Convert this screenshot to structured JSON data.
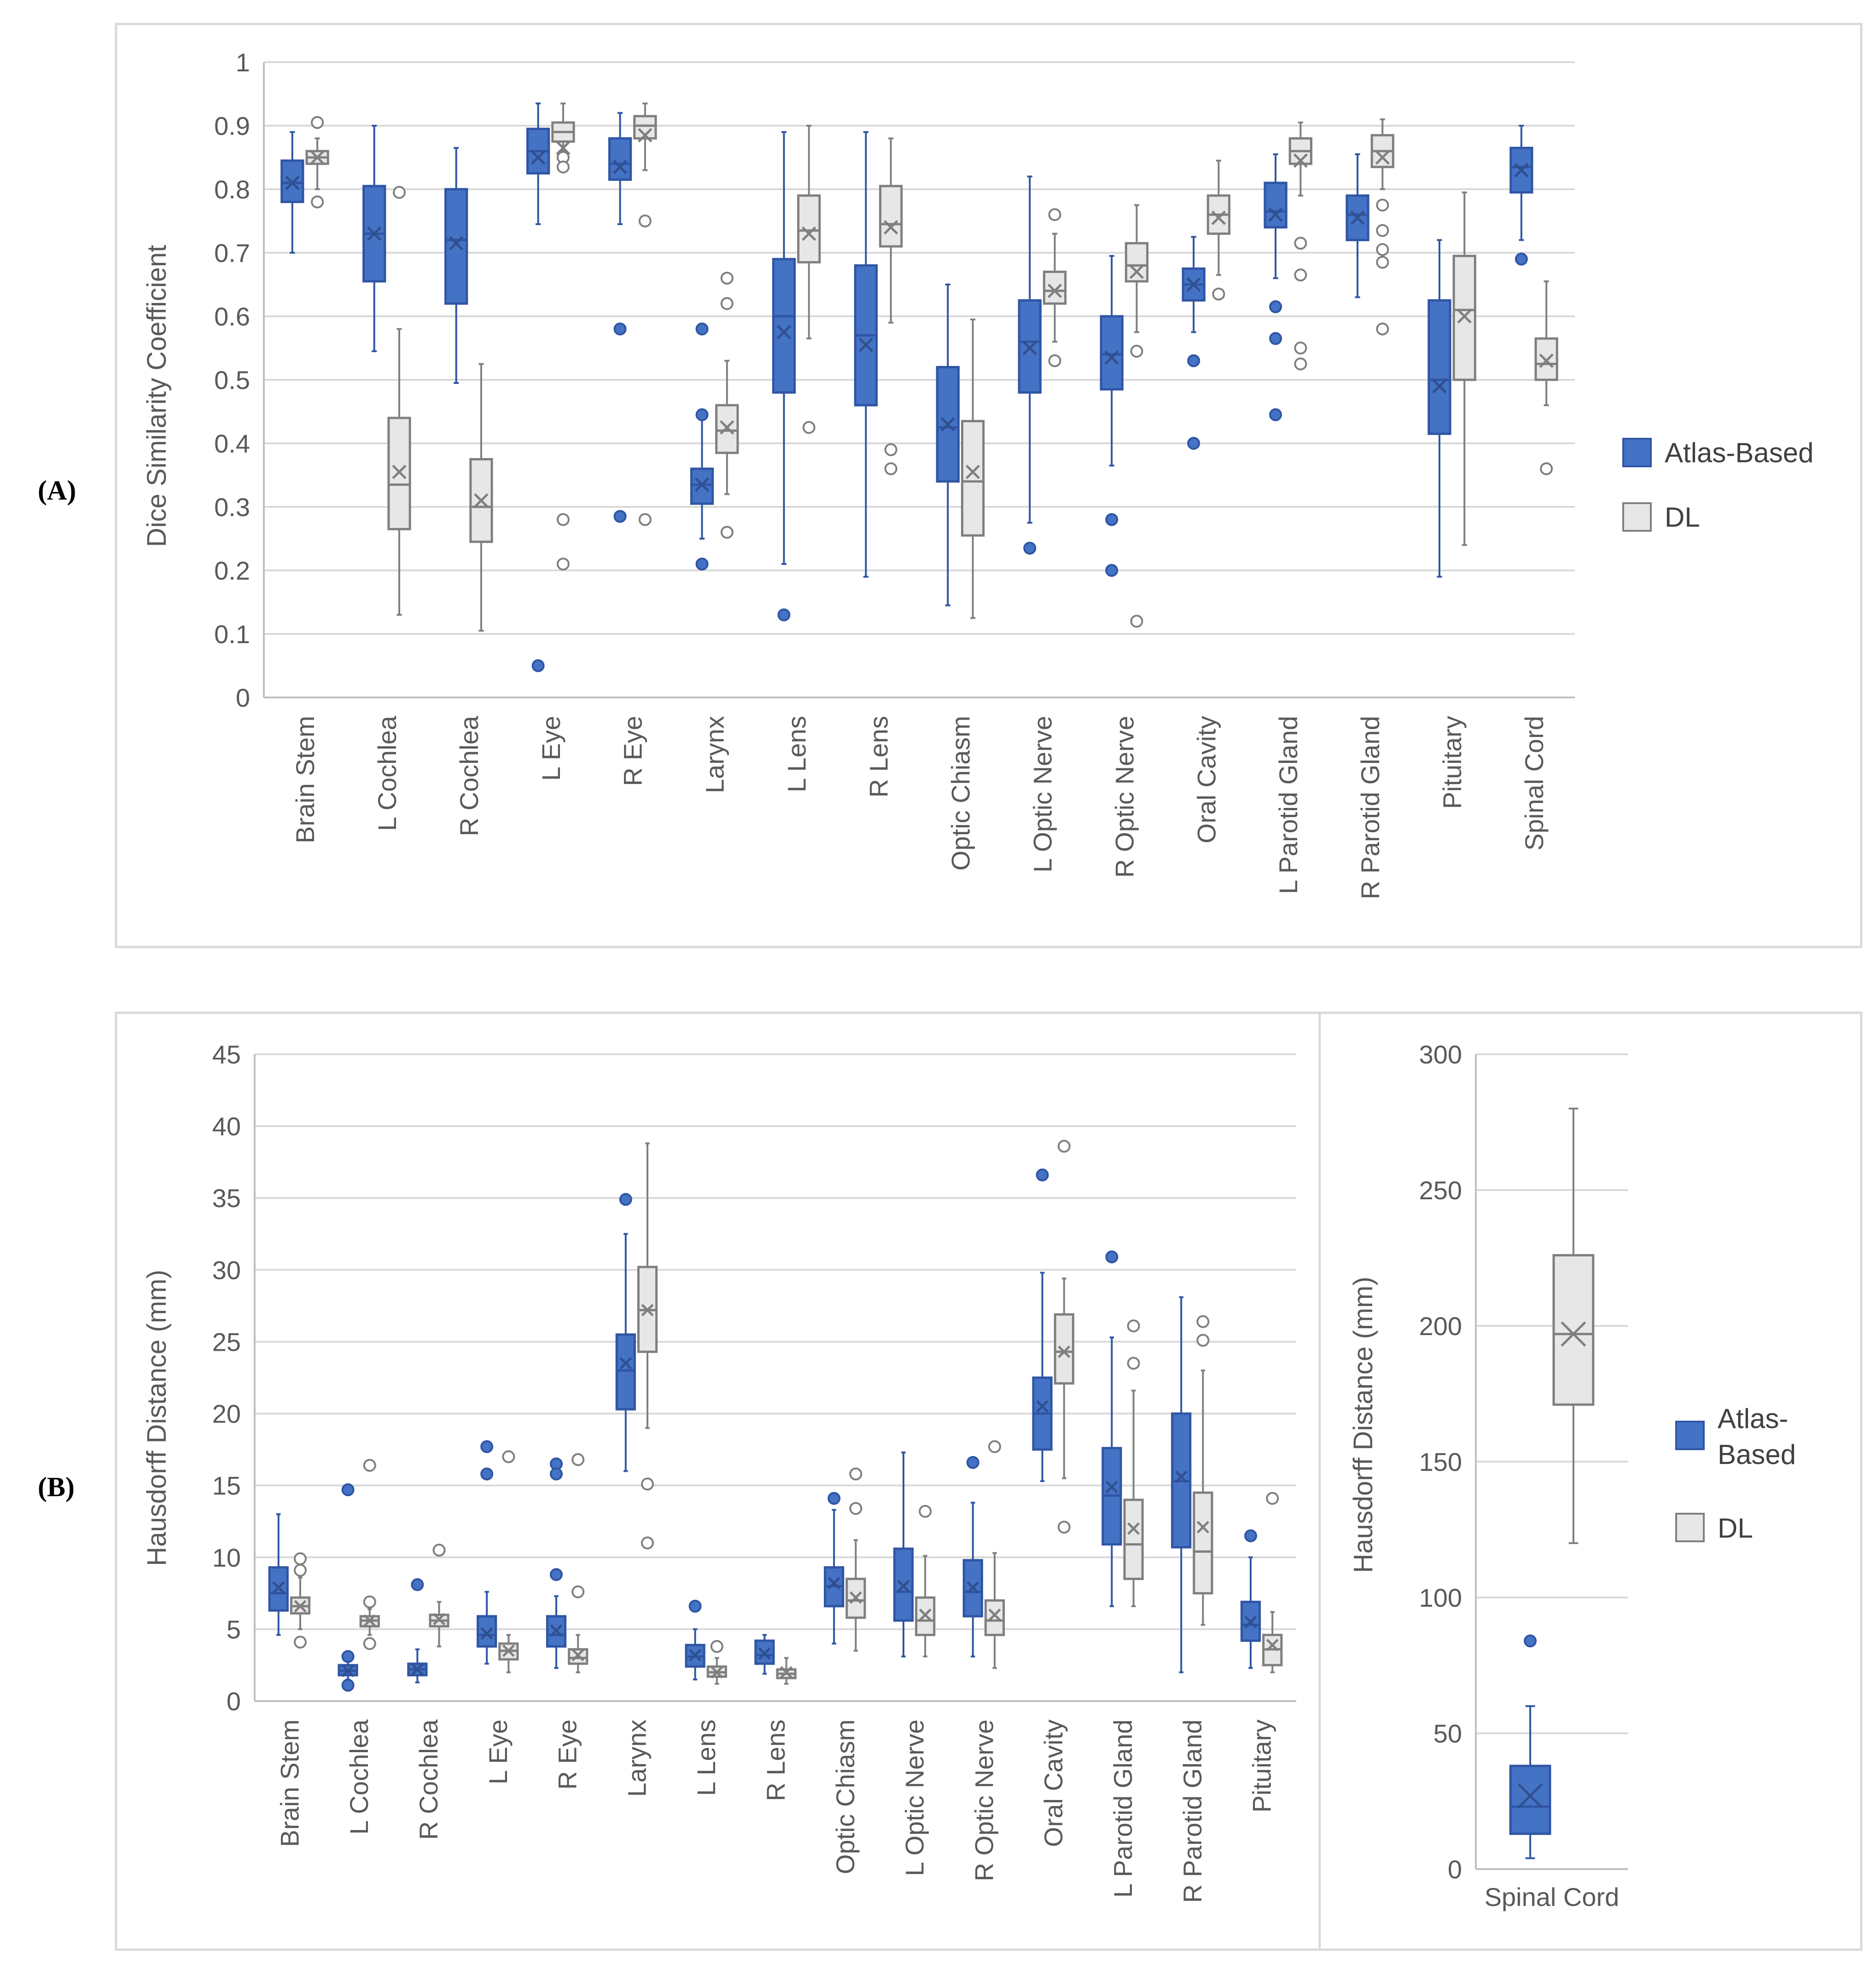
{
  "colors": {
    "atlas": "#4472C4",
    "atlas_edge": "#2F55A4",
    "dl": "#E7E7E7",
    "dl_edge": "#7F7F7F",
    "grid": "#D9D9D9",
    "axis": "#BFBFBF",
    "text": "#595959"
  },
  "chart_data": [
    {
      "id": "A",
      "panel_label_open": "(",
      "panel_label": "A",
      "panel_label_close": ")",
      "type": "box",
      "ylabel": "Dice Similarity Coefficient",
      "ylim": [
        0,
        1
      ],
      "yticks": [
        "0",
        "0.1",
        "0.2",
        "0.3",
        "0.4",
        "0.5",
        "0.6",
        "0.7",
        "0.8",
        "0.9",
        "1"
      ],
      "legend": [
        "Atlas-Based",
        "DL"
      ],
      "categories": [
        "Brain Stem",
        "L Cochlea",
        "R Cochlea",
        "L Eye",
        "R Eye",
        "Larynx",
        "L Lens",
        "R Lens",
        "Optic Chiasm",
        "L Optic Nerve",
        "R Optic Nerve",
        "Oral Cavity",
        "L Parotid Gland",
        "R Parotid Gland",
        "Pituitary",
        "Spinal Cord"
      ],
      "series": [
        {
          "name": "Atlas-Based",
          "boxes": [
            {
              "min": 0.7,
              "q1": 0.78,
              "med": 0.81,
              "q3": 0.845,
              "max": 0.89,
              "mean": 0.81,
              "out": []
            },
            {
              "min": 0.545,
              "q1": 0.655,
              "med": 0.73,
              "q3": 0.805,
              "max": 0.9,
              "mean": 0.73,
              "out": []
            },
            {
              "min": 0.495,
              "q1": 0.62,
              "med": 0.72,
              "q3": 0.8,
              "max": 0.865,
              "mean": 0.715,
              "out": []
            },
            {
              "min": 0.745,
              "q1": 0.825,
              "med": 0.86,
              "q3": 0.895,
              "max": 0.935,
              "mean": 0.85,
              "out": [
                0.05
              ]
            },
            {
              "min": 0.745,
              "q1": 0.815,
              "med": 0.84,
              "q3": 0.88,
              "max": 0.92,
              "mean": 0.835,
              "out": [
                0.58,
                0.285
              ]
            },
            {
              "min": 0.25,
              "q1": 0.305,
              "med": 0.335,
              "q3": 0.36,
              "max": 0.44,
              "mean": 0.335,
              "out": [
                0.58,
                0.445,
                0.21
              ]
            },
            {
              "min": 0.21,
              "q1": 0.48,
              "med": 0.6,
              "q3": 0.69,
              "max": 0.89,
              "mean": 0.575,
              "out": [
                0.13
              ]
            },
            {
              "min": 0.19,
              "q1": 0.46,
              "med": 0.57,
              "q3": 0.68,
              "max": 0.89,
              "mean": 0.555,
              "out": []
            },
            {
              "min": 0.145,
              "q1": 0.34,
              "med": 0.425,
              "q3": 0.52,
              "max": 0.65,
              "mean": 0.43,
              "out": []
            },
            {
              "min": 0.275,
              "q1": 0.48,
              "med": 0.56,
              "q3": 0.625,
              "max": 0.82,
              "mean": 0.55,
              "out": [
                0.235
              ]
            },
            {
              "min": 0.365,
              "q1": 0.485,
              "med": 0.54,
              "q3": 0.6,
              "max": 0.695,
              "mean": 0.535,
              "out": [
                0.28,
                0.2
              ]
            },
            {
              "min": 0.575,
              "q1": 0.625,
              "med": 0.65,
              "q3": 0.675,
              "max": 0.725,
              "mean": 0.65,
              "out": [
                0.53,
                0.4
              ]
            },
            {
              "min": 0.66,
              "q1": 0.74,
              "med": 0.765,
              "q3": 0.81,
              "max": 0.855,
              "mean": 0.76,
              "out": [
                0.615,
                0.565,
                0.445
              ]
            },
            {
              "min": 0.63,
              "q1": 0.72,
              "med": 0.76,
              "q3": 0.79,
              "max": 0.855,
              "mean": 0.755,
              "out": []
            },
            {
              "min": 0.19,
              "q1": 0.415,
              "med": 0.5,
              "q3": 0.625,
              "max": 0.72,
              "mean": 0.49,
              "out": []
            },
            {
              "min": 0.72,
              "q1": 0.795,
              "med": 0.835,
              "q3": 0.865,
              "max": 0.9,
              "mean": 0.83,
              "out": [
                0.69
              ]
            }
          ]
        },
        {
          "name": "DL",
          "boxes": [
            {
              "min": 0.8,
              "q1": 0.84,
              "med": 0.85,
              "q3": 0.86,
              "max": 0.88,
              "mean": 0.85,
              "out": [
                0.905,
                0.78
              ]
            },
            {
              "min": 0.13,
              "q1": 0.265,
              "med": 0.335,
              "q3": 0.44,
              "max": 0.58,
              "mean": 0.355,
              "out": [
                0.795
              ]
            },
            {
              "min": 0.105,
              "q1": 0.245,
              "med": 0.3,
              "q3": 0.375,
              "max": 0.525,
              "mean": 0.31,
              "out": []
            },
            {
              "min": 0.86,
              "q1": 0.875,
              "med": 0.89,
              "q3": 0.905,
              "max": 0.935,
              "mean": 0.865,
              "out": [
                0.85,
                0.835,
                0.28,
                0.21
              ]
            },
            {
              "min": 0.83,
              "q1": 0.88,
              "med": 0.9,
              "q3": 0.915,
              "max": 0.935,
              "mean": 0.885,
              "out": [
                0.75,
                0.28
              ]
            },
            {
              "min": 0.32,
              "q1": 0.385,
              "med": 0.42,
              "q3": 0.46,
              "max": 0.53,
              "mean": 0.425,
              "out": [
                0.66,
                0.62,
                0.26
              ]
            },
            {
              "min": 0.565,
              "q1": 0.685,
              "med": 0.735,
              "q3": 0.79,
              "max": 0.9,
              "mean": 0.73,
              "out": [
                0.425
              ]
            },
            {
              "min": 0.59,
              "q1": 0.71,
              "med": 0.745,
              "q3": 0.805,
              "max": 0.88,
              "mean": 0.74,
              "out": [
                0.39,
                0.36
              ]
            },
            {
              "min": 0.125,
              "q1": 0.255,
              "med": 0.34,
              "q3": 0.435,
              "max": 0.595,
              "mean": 0.355,
              "out": []
            },
            {
              "min": 0.56,
              "q1": 0.62,
              "med": 0.64,
              "q3": 0.67,
              "max": 0.73,
              "mean": 0.64,
              "out": [
                0.76,
                0.53
              ]
            },
            {
              "min": 0.575,
              "q1": 0.655,
              "med": 0.68,
              "q3": 0.715,
              "max": 0.775,
              "mean": 0.67,
              "out": [
                0.545,
                0.12
              ]
            },
            {
              "min": 0.665,
              "q1": 0.73,
              "med": 0.76,
              "q3": 0.79,
              "max": 0.845,
              "mean": 0.755,
              "out": [
                0.635
              ]
            },
            {
              "min": 0.79,
              "q1": 0.84,
              "med": 0.86,
              "q3": 0.88,
              "max": 0.905,
              "mean": 0.845,
              "out": [
                0.715,
                0.665,
                0.55,
                0.525
              ]
            },
            {
              "min": 0.8,
              "q1": 0.835,
              "med": 0.86,
              "q3": 0.885,
              "max": 0.91,
              "mean": 0.85,
              "out": [
                0.775,
                0.735,
                0.705,
                0.685,
                0.58
              ]
            },
            {
              "min": 0.24,
              "q1": 0.5,
              "med": 0.61,
              "q3": 0.695,
              "max": 0.795,
              "mean": 0.6,
              "out": []
            },
            {
              "min": 0.46,
              "q1": 0.5,
              "med": 0.525,
              "q3": 0.565,
              "max": 0.655,
              "mean": 0.53,
              "out": [
                0.36
              ]
            }
          ]
        }
      ]
    },
    {
      "id": "B",
      "panel_label_open": "(",
      "panel_label": "B",
      "panel_label_close": ")",
      "type": "box",
      "ylabel": "Hausdorff Distance (mm)",
      "ylim": [
        0,
        45
      ],
      "yticks": [
        "0",
        "5",
        "10",
        "15",
        "20",
        "25",
        "30",
        "35",
        "40",
        "45"
      ],
      "categories": [
        "Brain Stem",
        "L Cochlea",
        "R Cochlea",
        "L Eye",
        "R Eye",
        "Larynx",
        "L Lens",
        "R Lens",
        "Optic Chiasm",
        "L Optic Nerve",
        "R Optic Nerve",
        "Oral Cavity",
        "L Parotid Gland",
        "R Parotid Gland",
        "Pituitary"
      ],
      "series": [
        {
          "name": "Atlas-Based",
          "boxes": [
            {
              "min": 4.6,
              "q1": 6.3,
              "med": 7.5,
              "q3": 9.3,
              "max": 13.0,
              "mean": 7.9,
              "out": []
            },
            {
              "min": 1.5,
              "q1": 1.8,
              "med": 2.1,
              "q3": 2.5,
              "max": 3.0,
              "mean": 2.1,
              "out": [
                14.7,
                3.1,
                1.1
              ]
            },
            {
              "min": 1.3,
              "q1": 1.8,
              "med": 2.2,
              "q3": 2.6,
              "max": 3.6,
              "mean": 2.2,
              "out": [
                8.1
              ]
            },
            {
              "min": 2.6,
              "q1": 3.8,
              "med": 4.6,
              "q3": 5.9,
              "max": 7.6,
              "mean": 4.7,
              "out": [
                17.7,
                15.8
              ]
            },
            {
              "min": 2.3,
              "q1": 3.8,
              "med": 4.6,
              "q3": 5.9,
              "max": 7.3,
              "mean": 4.9,
              "out": [
                16.5,
                15.8,
                8.8
              ]
            },
            {
              "min": 16.0,
              "q1": 20.3,
              "med": 23.0,
              "q3": 25.5,
              "max": 32.5,
              "mean": 23.5,
              "out": [
                34.9
              ]
            },
            {
              "min": 1.5,
              "q1": 2.4,
              "med": 3.1,
              "q3": 3.9,
              "max": 5.0,
              "mean": 3.2,
              "out": [
                6.6
              ]
            },
            {
              "min": 1.9,
              "q1": 2.6,
              "med": 3.2,
              "q3": 4.2,
              "max": 4.6,
              "mean": 3.3,
              "out": []
            },
            {
              "min": 4.0,
              "q1": 6.6,
              "med": 8.0,
              "q3": 9.3,
              "max": 13.3,
              "mean": 8.2,
              "out": [
                14.1
              ]
            },
            {
              "min": 3.1,
              "q1": 5.6,
              "med": 7.6,
              "q3": 10.6,
              "max": 17.3,
              "mean": 8.0,
              "out": []
            },
            {
              "min": 3.1,
              "q1": 5.9,
              "med": 7.6,
              "q3": 9.8,
              "max": 13.8,
              "mean": 7.9,
              "out": [
                16.6
              ]
            },
            {
              "min": 15.3,
              "q1": 17.5,
              "med": 20.0,
              "q3": 22.5,
              "max": 29.8,
              "mean": 20.5,
              "out": [
                36.6
              ]
            },
            {
              "min": 6.6,
              "q1": 10.9,
              "med": 14.3,
              "q3": 17.6,
              "max": 25.3,
              "mean": 14.9,
              "out": [
                30.9
              ]
            },
            {
              "min": 2.0,
              "q1": 10.7,
              "med": 15.3,
              "q3": 20.0,
              "max": 28.1,
              "mean": 15.6,
              "out": []
            },
            {
              "min": 2.3,
              "q1": 4.2,
              "med": 5.3,
              "q3": 6.9,
              "max": 10.0,
              "mean": 5.5,
              "out": [
                11.5
              ]
            }
          ]
        },
        {
          "name": "DL",
          "boxes": [
            {
              "min": 5.0,
              "q1": 6.1,
              "med": 6.6,
              "q3": 7.2,
              "max": 8.6,
              "mean": 6.6,
              "out": [
                9.9,
                9.1,
                4.1
              ]
            },
            {
              "min": 4.6,
              "q1": 5.2,
              "med": 5.6,
              "q3": 5.9,
              "max": 6.4,
              "mean": 5.6,
              "out": [
                16.4,
                6.9,
                4.0
              ]
            },
            {
              "min": 3.8,
              "q1": 5.2,
              "med": 5.6,
              "q3": 6.0,
              "max": 6.9,
              "mean": 5.7,
              "out": [
                10.5
              ]
            },
            {
              "min": 2.0,
              "q1": 2.9,
              "med": 3.5,
              "q3": 4.0,
              "max": 4.6,
              "mean": 3.5,
              "out": [
                17.0
              ]
            },
            {
              "min": 2.0,
              "q1": 2.6,
              "med": 3.0,
              "q3": 3.6,
              "max": 4.6,
              "mean": 3.2,
              "out": [
                16.8,
                7.6
              ]
            },
            {
              "min": 19.0,
              "q1": 24.3,
              "med": 27.2,
              "q3": 30.2,
              "max": 38.8,
              "mean": 27.2,
              "out": [
                15.1,
                11.0
              ]
            },
            {
              "min": 1.2,
              "q1": 1.7,
              "med": 2.0,
              "q3": 2.4,
              "max": 3.0,
              "mean": 2.0,
              "out": [
                3.8
              ]
            },
            {
              "min": 1.2,
              "q1": 1.6,
              "med": 1.9,
              "q3": 2.2,
              "max": 3.0,
              "mean": 2.0,
              "out": []
            },
            {
              "min": 3.5,
              "q1": 5.8,
              "med": 7.0,
              "q3": 8.5,
              "max": 11.2,
              "mean": 7.2,
              "out": [
                15.8,
                13.4
              ]
            },
            {
              "min": 3.1,
              "q1": 4.6,
              "med": 5.6,
              "q3": 7.2,
              "max": 10.1,
              "mean": 6.0,
              "out": [
                13.2
              ]
            },
            {
              "min": 2.3,
              "q1": 4.6,
              "med": 5.6,
              "q3": 7.0,
              "max": 10.3,
              "mean": 6.0,
              "out": [
                17.7
              ]
            },
            {
              "min": 15.5,
              "q1": 22.1,
              "med": 24.3,
              "q3": 26.9,
              "max": 29.4,
              "mean": 24.3,
              "out": [
                38.6,
                12.1
              ]
            },
            {
              "min": 6.6,
              "q1": 8.5,
              "med": 10.9,
              "q3": 14.0,
              "max": 21.6,
              "mean": 12.0,
              "out": [
                26.1,
                23.5
              ]
            },
            {
              "min": 5.3,
              "q1": 7.5,
              "med": 10.4,
              "q3": 14.5,
              "max": 23.0,
              "mean": 12.1,
              "out": [
                26.4,
                25.1
              ]
            },
            {
              "min": 2.0,
              "q1": 2.5,
              "med": 3.6,
              "q3": 4.6,
              "max": 6.2,
              "mean": 3.9,
              "out": [
                14.1
              ]
            }
          ]
        }
      ]
    },
    {
      "id": "B-inset",
      "type": "box",
      "ylabel": "Hausdorff Distance (mm)",
      "ylim": [
        0,
        300
      ],
      "yticks": [
        "0",
        "50",
        "100",
        "150",
        "200",
        "250",
        "300"
      ],
      "legend_atlas_line1": "Atlas-",
      "legend_atlas_line2": "Based",
      "legend_dl": "DL",
      "categories": [
        "Spinal Cord"
      ],
      "series": [
        {
          "name": "Atlas-Based",
          "boxes": [
            {
              "min": 4,
              "q1": 13,
              "med": 23,
              "q3": 38,
              "max": 60,
              "mean": 27,
              "out": [
                84
              ]
            }
          ]
        },
        {
          "name": "DL",
          "boxes": [
            {
              "min": 120,
              "q1": 171,
              "med": 197,
              "q3": 226,
              "max": 280,
              "mean": 197,
              "out": []
            }
          ]
        }
      ]
    }
  ]
}
